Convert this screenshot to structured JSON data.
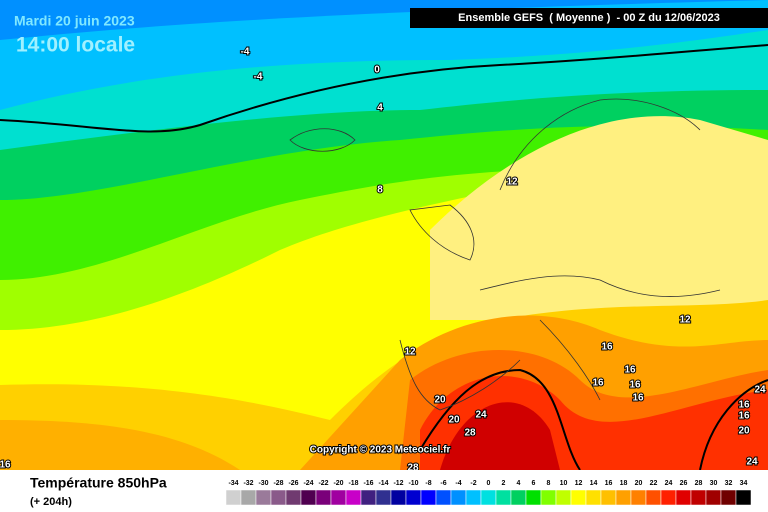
{
  "header": {
    "date": "Mardi 20 juin 2023",
    "time": "14:00 locale",
    "model": "Ensemble GEFS  ( Moyenne )  - 00 Z du 12/06/2023"
  },
  "copyright": "Copyright © 2023 Meteociel.fr",
  "contour_labels": [
    -4,
    -4,
    0,
    4,
    8,
    12,
    12,
    12,
    16,
    16,
    16,
    16,
    16,
    20,
    20,
    24,
    28,
    28,
    16,
    16,
    20,
    24,
    24,
    16
  ],
  "footer": {
    "title": "Température 850hPa",
    "subtitle": "(+ 204h)"
  },
  "legend": {
    "values": [
      -34,
      -32,
      -30,
      -28,
      -26,
      -24,
      -22,
      -20,
      -18,
      -16,
      -14,
      -12,
      -10,
      -8,
      -6,
      -4,
      -2,
      0,
      2,
      4,
      6,
      8,
      10,
      12,
      14,
      16,
      18,
      20,
      22,
      24,
      26,
      28,
      30,
      32,
      34
    ],
    "colors": [
      "#d0d0d0",
      "#a8a8a8",
      "#9a7a9a",
      "#8a5a8a",
      "#703a70",
      "#500050",
      "#7a007a",
      "#a000a0",
      "#c800c8",
      "#402080",
      "#303090",
      "#0000a0",
      "#0000d0",
      "#0000ff",
      "#0050ff",
      "#0090ff",
      "#00c0ff",
      "#00e0e0",
      "#00e0a0",
      "#00d060",
      "#00e000",
      "#80ff00",
      "#c0ff00",
      "#ffff00",
      "#ffe000",
      "#ffc000",
      "#ffa000",
      "#ff8000",
      "#ff5000",
      "#ff2000",
      "#e00000",
      "#c00000",
      "#a00000",
      "#700000",
      "#000000"
    ]
  }
}
